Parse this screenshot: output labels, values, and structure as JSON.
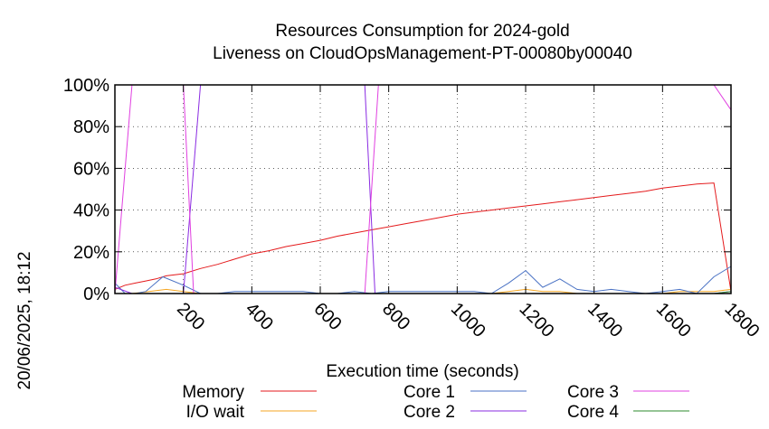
{
  "chart_data": {
    "type": "line",
    "title_line1": "Resources Consumption for 2024-gold",
    "title_line2": "Liveness on CloudOpsManagement-PT-00080by00040",
    "xlabel": "Execution time (seconds)",
    "ylabel": "",
    "side_stamp": "20/06/2025, 18:12",
    "xlim": [
      0,
      1800
    ],
    "ylim": [
      0,
      100
    ],
    "x_ticks": [
      200,
      400,
      600,
      800,
      1000,
      1200,
      1400,
      1600,
      1800
    ],
    "x_tick_labels": [
      "200",
      "400",
      "600",
      "800",
      "1000",
      "1200",
      "1400",
      "1600",
      "1800"
    ],
    "y_ticks": [
      0,
      20,
      40,
      60,
      80,
      100
    ],
    "y_tick_labels": [
      "0%",
      "20%",
      "40%",
      "60%",
      "80%",
      "100%"
    ],
    "grid": true,
    "legend_position": "bottom",
    "series": [
      {
        "name": "Memory",
        "color": "#e41a1c",
        "points": [
          [
            0,
            2
          ],
          [
            30,
            4
          ],
          [
            60,
            5
          ],
          [
            90,
            6
          ],
          [
            120,
            7
          ],
          [
            150,
            8.5
          ],
          [
            200,
            9.5
          ],
          [
            250,
            12
          ],
          [
            300,
            14
          ],
          [
            350,
            16.5
          ],
          [
            400,
            19
          ],
          [
            450,
            20.5
          ],
          [
            500,
            22.5
          ],
          [
            550,
            24
          ],
          [
            600,
            25.5
          ],
          [
            650,
            27.5
          ],
          [
            700,
            29
          ],
          [
            750,
            30.5
          ],
          [
            800,
            32
          ],
          [
            850,
            33.5
          ],
          [
            900,
            35
          ],
          [
            950,
            36.5
          ],
          [
            1000,
            38
          ],
          [
            1050,
            39
          ],
          [
            1100,
            40
          ],
          [
            1150,
            41
          ],
          [
            1200,
            42
          ],
          [
            1250,
            43
          ],
          [
            1300,
            44
          ],
          [
            1350,
            45
          ],
          [
            1400,
            46
          ],
          [
            1450,
            47
          ],
          [
            1500,
            48
          ],
          [
            1550,
            49
          ],
          [
            1600,
            50.5
          ],
          [
            1650,
            51.5
          ],
          [
            1700,
            52.5
          ],
          [
            1750,
            53
          ],
          [
            1800,
            1
          ]
        ]
      },
      {
        "name": "I/O wait",
        "color": "#f5a623",
        "points": [
          [
            0,
            0
          ],
          [
            50,
            0
          ],
          [
            100,
            1
          ],
          [
            150,
            2
          ],
          [
            200,
            1
          ],
          [
            250,
            0
          ],
          [
            300,
            0
          ],
          [
            350,
            0
          ],
          [
            400,
            0
          ],
          [
            450,
            0
          ],
          [
            500,
            0
          ],
          [
            550,
            0
          ],
          [
            600,
            0
          ],
          [
            650,
            0
          ],
          [
            700,
            0
          ],
          [
            750,
            0
          ],
          [
            800,
            0
          ],
          [
            850,
            0
          ],
          [
            900,
            0
          ],
          [
            950,
            0
          ],
          [
            1000,
            0
          ],
          [
            1050,
            0
          ],
          [
            1100,
            0
          ],
          [
            1150,
            1
          ],
          [
            1200,
            2
          ],
          [
            1250,
            1
          ],
          [
            1300,
            1
          ],
          [
            1350,
            0
          ],
          [
            1400,
            0
          ],
          [
            1450,
            0
          ],
          [
            1500,
            0
          ],
          [
            1550,
            0
          ],
          [
            1600,
            0
          ],
          [
            1650,
            1
          ],
          [
            1700,
            1
          ],
          [
            1750,
            1
          ],
          [
            1800,
            2
          ]
        ]
      },
      {
        "name": "Core 1",
        "color": "#4a72c4",
        "points": [
          [
            0,
            5
          ],
          [
            30,
            0
          ],
          [
            60,
            0
          ],
          [
            90,
            1
          ],
          [
            140,
            8
          ],
          [
            200,
            4
          ],
          [
            250,
            0
          ],
          [
            300,
            0
          ],
          [
            350,
            1
          ],
          [
            400,
            1
          ],
          [
            450,
            1
          ],
          [
            500,
            1
          ],
          [
            550,
            1
          ],
          [
            600,
            0
          ],
          [
            650,
            0
          ],
          [
            700,
            1
          ],
          [
            750,
            0
          ],
          [
            800,
            1
          ],
          [
            850,
            1
          ],
          [
            900,
            1
          ],
          [
            950,
            1
          ],
          [
            1000,
            1
          ],
          [
            1050,
            1
          ],
          [
            1100,
            0
          ],
          [
            1150,
            5
          ],
          [
            1200,
            11
          ],
          [
            1250,
            3
          ],
          [
            1300,
            7
          ],
          [
            1350,
            2
          ],
          [
            1400,
            1
          ],
          [
            1450,
            2
          ],
          [
            1500,
            1
          ],
          [
            1550,
            0
          ],
          [
            1600,
            1
          ],
          [
            1650,
            2
          ],
          [
            1700,
            0
          ],
          [
            1750,
            8
          ],
          [
            1800,
            13
          ]
        ]
      },
      {
        "name": "Core 2",
        "color": "#8a2be2",
        "points": [
          [
            0,
            3
          ],
          [
            50,
            0
          ],
          [
            100,
            0
          ],
          [
            150,
            0
          ],
          [
            200,
            0
          ],
          [
            250,
            100
          ],
          [
            300,
            100
          ],
          [
            350,
            100
          ],
          [
            400,
            100
          ],
          [
            450,
            100
          ],
          [
            500,
            100
          ],
          [
            550,
            100
          ],
          [
            600,
            100
          ],
          [
            650,
            100
          ],
          [
            700,
            100
          ],
          [
            730,
            100
          ],
          [
            760,
            0
          ],
          [
            800,
            0
          ],
          [
            850,
            0
          ],
          [
            900,
            0
          ],
          [
            950,
            0
          ],
          [
            1000,
            0
          ],
          [
            1050,
            0
          ],
          [
            1100,
            0
          ],
          [
            1150,
            0
          ],
          [
            1200,
            0
          ],
          [
            1250,
            0
          ],
          [
            1300,
            0
          ],
          [
            1350,
            0
          ],
          [
            1400,
            0
          ],
          [
            1450,
            0
          ],
          [
            1500,
            0
          ],
          [
            1550,
            0
          ],
          [
            1600,
            0
          ],
          [
            1650,
            0
          ],
          [
            1700,
            0
          ],
          [
            1750,
            0
          ],
          [
            1800,
            1
          ]
        ]
      },
      {
        "name": "Core 3",
        "color": "#e040e0",
        "points": [
          [
            0,
            0
          ],
          [
            50,
            100
          ],
          [
            100,
            100
          ],
          [
            150,
            100
          ],
          [
            200,
            100
          ],
          [
            230,
            0
          ],
          [
            250,
            0
          ],
          [
            300,
            0
          ],
          [
            350,
            0
          ],
          [
            400,
            0
          ],
          [
            450,
            0
          ],
          [
            500,
            0
          ],
          [
            550,
            0
          ],
          [
            600,
            0
          ],
          [
            650,
            0
          ],
          [
            700,
            0
          ],
          [
            730,
            0
          ],
          [
            770,
            100
          ],
          [
            800,
            100
          ],
          [
            900,
            100
          ],
          [
            1000,
            100
          ],
          [
            1100,
            100
          ],
          [
            1200,
            100
          ],
          [
            1300,
            100
          ],
          [
            1400,
            100
          ],
          [
            1500,
            100
          ],
          [
            1600,
            100
          ],
          [
            1700,
            100
          ],
          [
            1750,
            100
          ],
          [
            1800,
            88
          ]
        ]
      },
      {
        "name": "Core 4",
        "color": "#2e8b2e",
        "points": [
          [
            0,
            0
          ],
          [
            100,
            0
          ],
          [
            200,
            0
          ],
          [
            300,
            0
          ],
          [
            400,
            0
          ],
          [
            500,
            0
          ],
          [
            600,
            0
          ],
          [
            700,
            0
          ],
          [
            800,
            0
          ],
          [
            900,
            0
          ],
          [
            1000,
            0
          ],
          [
            1100,
            0
          ],
          [
            1200,
            0
          ],
          [
            1300,
            0
          ],
          [
            1400,
            0
          ],
          [
            1500,
            0
          ],
          [
            1600,
            0
          ],
          [
            1700,
            0
          ],
          [
            1750,
            0
          ],
          [
            1800,
            1
          ]
        ]
      }
    ]
  }
}
